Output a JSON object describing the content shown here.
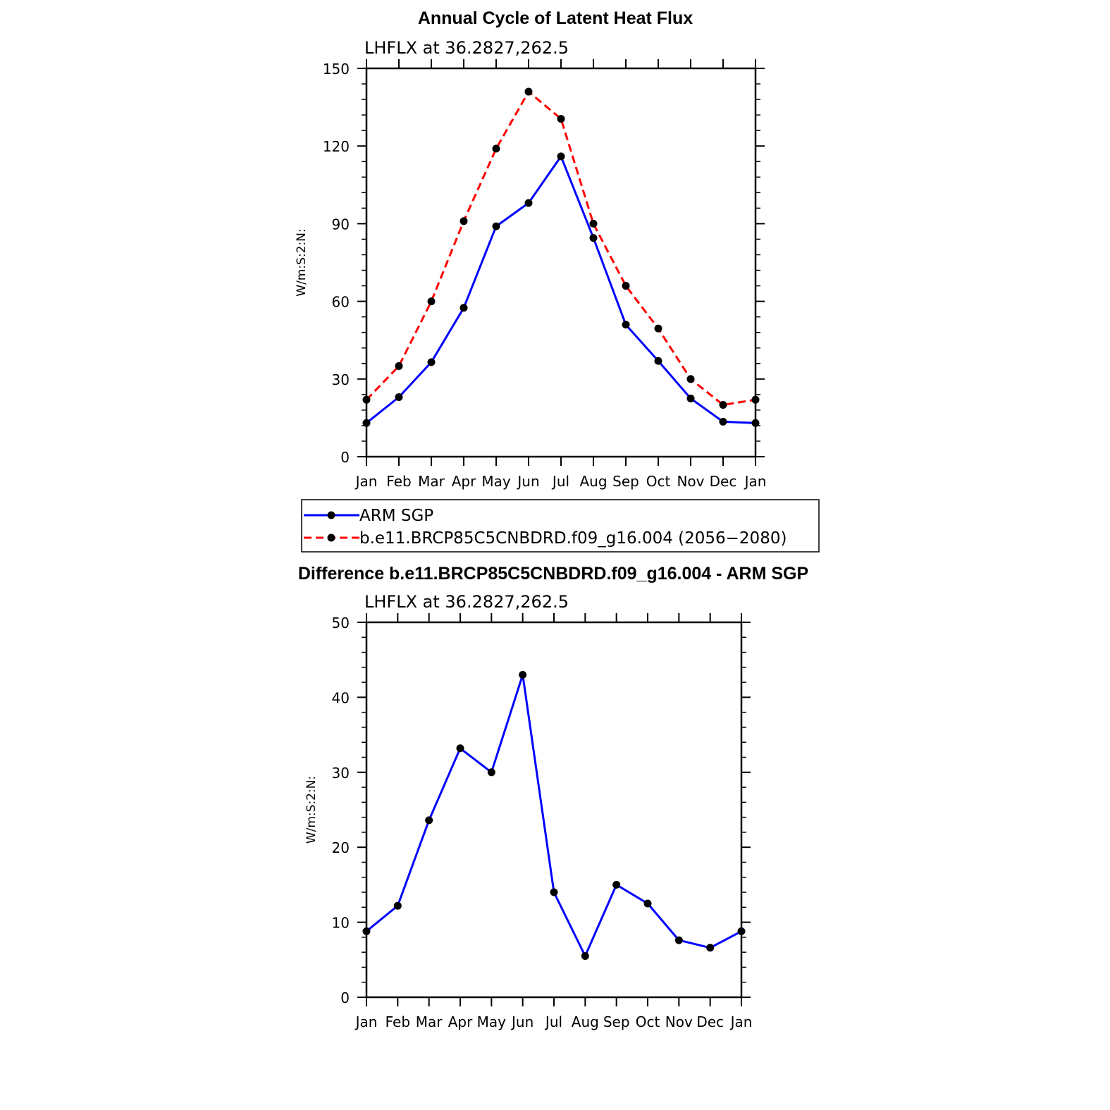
{
  "colors": {
    "model_line": "#ff0000",
    "obs_line": "#0000ff",
    "diff_line": "#0000ff",
    "marker": "#000000",
    "axis": "#000000"
  },
  "chart_data": [
    {
      "type": "line",
      "title": "Annual Cycle of Latent Heat Flux",
      "subtitle": "LHFLX at 36.2827,262.5",
      "xlabel": "",
      "ylabel": "W/m:S:2:N:",
      "categories": [
        "Jan",
        "Feb",
        "Mar",
        "Apr",
        "May",
        "Jun",
        "Jul",
        "Aug",
        "Sep",
        "Oct",
        "Nov",
        "Dec",
        "Jan"
      ],
      "ylim": [
        0,
        150
      ],
      "yticks": [
        0,
        30,
        60,
        90,
        120,
        150
      ],
      "series": [
        {
          "name": "ARM SGP",
          "style": "solid",
          "values": [
            13,
            23,
            36.5,
            57.5,
            89,
            98,
            116,
            84.5,
            51,
            37,
            22.5,
            13.5,
            13
          ]
        },
        {
          "name": "b.e11.BRCP85C5CNBDRD.f09_g16.004 (2056−2080)",
          "style": "dashed",
          "values": [
            22,
            35,
            60,
            91,
            119,
            141,
            130.5,
            90,
            66,
            49.5,
            30,
            20,
            22
          ]
        }
      ],
      "legend": "below"
    },
    {
      "type": "line",
      "title": "Difference b.e11.BRCP85C5CNBDRD.f09_g16.004 - ARM SGP",
      "subtitle": "LHFLX at 36.2827,262.5",
      "xlabel": "",
      "ylabel": "W/m:S:2:N:",
      "categories": [
        "Jan",
        "Feb",
        "Mar",
        "Apr",
        "May",
        "Jun",
        "Jul",
        "Aug",
        "Sep",
        "Oct",
        "Nov",
        "Dec",
        "Jan"
      ],
      "ylim": [
        0,
        50
      ],
      "yticks": [
        0,
        10,
        20,
        30,
        40,
        50
      ],
      "series": [
        {
          "name": "Difference",
          "style": "solid",
          "values": [
            8.8,
            12.2,
            23.6,
            33.2,
            30,
            43,
            14,
            5.5,
            15,
            12.5,
            7.6,
            6.6,
            8.8
          ]
        }
      ]
    }
  ]
}
